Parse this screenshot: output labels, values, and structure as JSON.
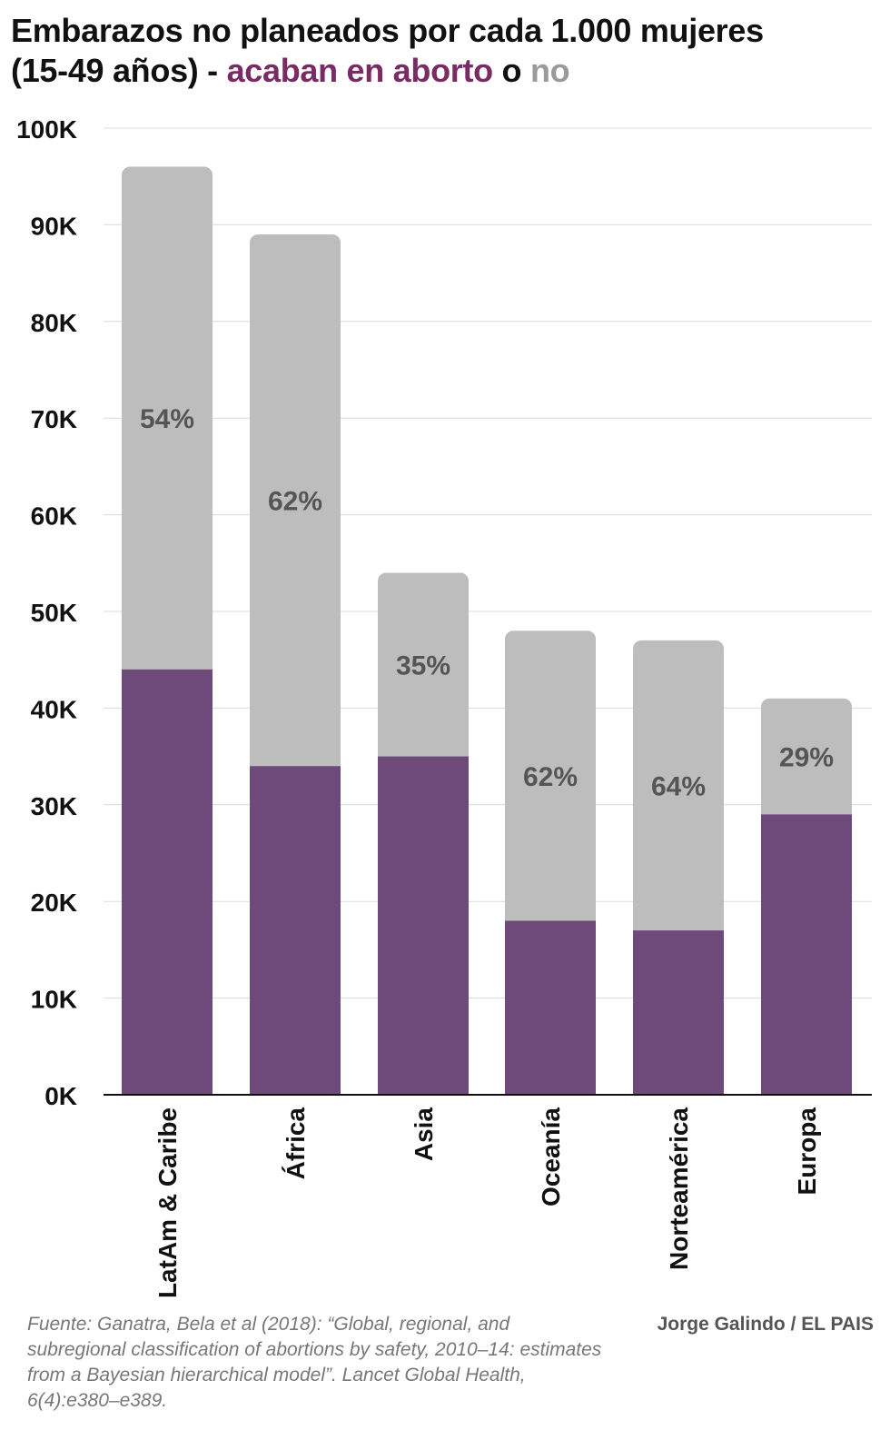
{
  "title": {
    "line1": "Embarazos no planeados por cada 1.000 mujeres",
    "line2_prefix": "(15-49 años) - ",
    "highlight_abortion": "acaban en aborto",
    "connector": " o ",
    "highlight_no": "no"
  },
  "colors": {
    "abortion": "#6e4a7a",
    "no_abortion": "#bdbdbd",
    "title_abortion": "#7a2b63",
    "title_no": "#9a9a9a",
    "percent_label": "#555555",
    "grid": "#dcdcdc",
    "axis": "#111111"
  },
  "chart_data": {
    "type": "bar",
    "stacked": true,
    "categories": [
      "LatAm & Caribe",
      "África",
      "Asia",
      "Oceanía",
      "Norteamérica",
      "Europa"
    ],
    "series": [
      {
        "name": "acaban en aborto",
        "values": [
          44000,
          34000,
          35000,
          18000,
          17000,
          29000
        ]
      },
      {
        "name": "no",
        "values": [
          52000,
          55000,
          19000,
          30000,
          30000,
          12000
        ]
      }
    ],
    "totals": [
      96000,
      89000,
      54000,
      48000,
      47000,
      41000
    ],
    "percent_labels": [
      "54%",
      "62%",
      "35%",
      "62%",
      "64%",
      "29%"
    ],
    "ylim": [
      0,
      100000
    ],
    "yticks": [
      0,
      10000,
      20000,
      30000,
      40000,
      50000,
      60000,
      70000,
      80000,
      90000,
      100000
    ],
    "ytick_labels": [
      "0K",
      "10K",
      "20K",
      "30K",
      "40K",
      "50K",
      "60K",
      "70K",
      "80K",
      "90K",
      "100K"
    ],
    "grid": true,
    "xlabel": "",
    "ylabel": ""
  },
  "source": "Fuente: Ganatra, Bela et al (2018): “Global, regional, and subregional classification of abortions by safety, 2010–14: estimates from a Bayesian hierarchical model”. Lancet Global Health, 6(4):e380–e389.",
  "credit": "Jorge Galindo / EL PAIS"
}
